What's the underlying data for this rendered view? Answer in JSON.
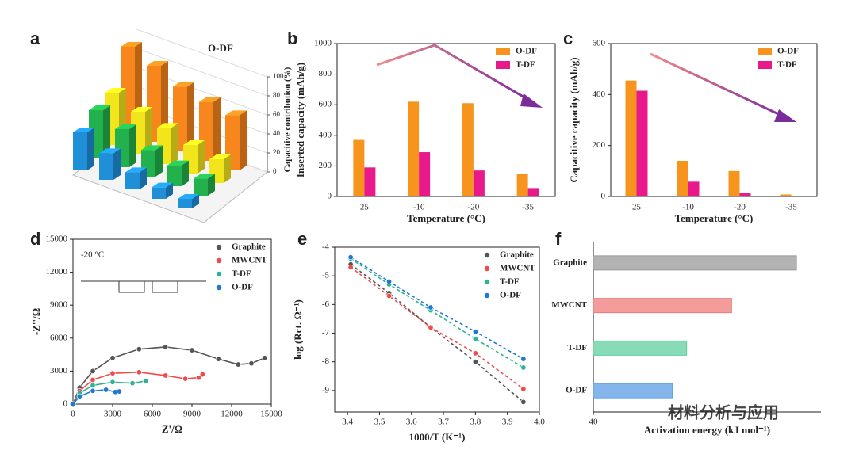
{
  "chart_data": [
    {
      "type": "bar3d",
      "label": "a",
      "title": "O-DF",
      "zlabel": "Capacitive contribution (%)",
      "zlim": [
        0,
        100
      ],
      "zticks": [
        0,
        20,
        40,
        60,
        80,
        100
      ],
      "series": [
        {
          "color": "#1f8fd8",
          "values": [
            40,
            28,
            18,
            12,
            10
          ]
        },
        {
          "color": "#22b14c",
          "values": [
            50,
            40,
            28,
            22,
            18
          ]
        },
        {
          "color": "#f2e51c",
          "values": [
            55,
            45,
            38,
            30,
            25
          ]
        },
        {
          "color": "#f7861c",
          "values": [
            90,
            80,
            68,
            62,
            58
          ]
        }
      ]
    },
    {
      "type": "bar",
      "label": "b",
      "ylabel": "Inserted capacity (mAh/g)",
      "xlabel": "Temperature (°C)",
      "categories": [
        "25",
        "-10",
        "-20",
        "-35"
      ],
      "series": [
        {
          "name": "O-DF",
          "color": "#f7941d",
          "values": [
            370,
            620,
            610,
            150
          ]
        },
        {
          "name": "T-DF",
          "color": "#e8198b",
          "values": [
            190,
            290,
            170,
            55
          ]
        }
      ],
      "ylim": [
        0,
        1000
      ],
      "yticks": [
        0,
        200,
        400,
        600,
        800,
        1000
      ],
      "legend": "upper right"
    },
    {
      "type": "bar",
      "label": "c",
      "ylabel": "Capacitive capacity (mAh/g)",
      "xlabel": "Temperature (°C)",
      "categories": [
        "25",
        "-10",
        "-20",
        "-35"
      ],
      "series": [
        {
          "name": "O-DF",
          "color": "#f7941d",
          "values": [
            455,
            140,
            100,
            8
          ]
        },
        {
          "name": "T-DF",
          "color": "#e8198b",
          "values": [
            415,
            58,
            15,
            3
          ]
        }
      ],
      "ylim": [
        0,
        600
      ],
      "yticks": [
        0,
        200,
        400,
        600
      ],
      "legend": "upper right"
    },
    {
      "type": "scatter",
      "label": "d",
      "annotation": "-20 °C",
      "xlabel": "Z'/Ω",
      "ylabel": "-Z''/Ω",
      "xlim": [
        0,
        15000
      ],
      "xticks": [
        0,
        3000,
        6000,
        9000,
        12000,
        15000
      ],
      "ylim": [
        0,
        15000
      ],
      "yticks": [
        0,
        3000,
        6000,
        9000,
        12000,
        15000
      ],
      "line_style": "solid",
      "legend": "upper right",
      "series": [
        {
          "name": "Graphite",
          "color": "#555555",
          "x": [
            0,
            500,
            1500,
            3000,
            5000,
            7000,
            9000,
            11000,
            12500,
            13500,
            14500
          ],
          "values": [
            0,
            1500,
            3000,
            4200,
            5000,
            5200,
            4900,
            4100,
            3600,
            3700,
            4200
          ]
        },
        {
          "name": "MWCNT",
          "color": "#ee4b4b",
          "x": [
            0,
            500,
            1500,
            3000,
            5000,
            7000,
            8500,
            9500,
            9800
          ],
          "values": [
            0,
            1200,
            2200,
            2800,
            2900,
            2600,
            2300,
            2400,
            2700
          ]
        },
        {
          "name": "T-DF",
          "color": "#2bb594",
          "x": [
            0,
            500,
            1500,
            3000,
            4500,
            5500
          ],
          "values": [
            0,
            1000,
            1700,
            2000,
            1900,
            2100
          ]
        },
        {
          "name": "O-DF",
          "color": "#1f78d1",
          "x": [
            0,
            500,
            1500,
            2500,
            3200,
            3500
          ],
          "values": [
            0,
            700,
            1200,
            1300,
            1100,
            1150
          ]
        }
      ]
    },
    {
      "type": "scatter",
      "label": "e",
      "xlabel": "1000/T (K⁻¹)",
      "ylabel": "log (Rct. Ω⁻¹)",
      "xlim": [
        3.36,
        4.0
      ],
      "xticks": [
        3.4,
        3.5,
        3.6,
        3.7,
        3.8,
        3.9,
        {
          "value": 4,
          "label": "4.0"
        }
      ],
      "ylim": [
        -9.75,
        -4
      ],
      "yticks": [
        -4,
        -5,
        -6,
        -7,
        -8,
        -9
      ],
      "line_style": "dashed",
      "legend": "upper right",
      "series": [
        {
          "name": "Graphite",
          "color": "#555555",
          "x": [
            3.41,
            3.53,
            3.66,
            3.8,
            3.95
          ],
          "values": [
            -4.6,
            -5.6,
            -6.8,
            -8.0,
            -9.4
          ]
        },
        {
          "name": "MWCNT",
          "color": "#ee4b4b",
          "x": [
            3.41,
            3.53,
            3.66,
            3.8,
            3.95
          ],
          "values": [
            -4.7,
            -5.7,
            -6.8,
            -7.7,
            -8.95
          ]
        },
        {
          "name": "T-DF",
          "color": "#2bb594",
          "x": [
            3.41,
            3.53,
            3.66,
            3.8,
            3.95
          ],
          "values": [
            -4.4,
            -5.3,
            -6.2,
            -7.2,
            -8.2
          ]
        },
        {
          "name": "O-DF",
          "color": "#1f78d1",
          "x": [
            3.41,
            3.53,
            3.66,
            3.8,
            3.95
          ],
          "values": [
            -4.35,
            -5.2,
            -6.1,
            -6.95,
            -7.9
          ]
        }
      ]
    },
    {
      "type": "hbar",
      "label": "f",
      "xlabel": "Activation energy (kJ mol⁻¹)",
      "categories": [
        "Graphite",
        "MWCNT",
        "T-DF",
        "O-DF"
      ],
      "values": [
        75.7,
        64.3,
        56.4,
        53.9
      ],
      "colors": [
        "#9a9a9a",
        "#f07a7a",
        "#5fcf9f",
        "#5b9ee6"
      ],
      "xlim": [
        40,
        80
      ],
      "xticks": [
        40
      ]
    }
  ],
  "watermark": "材料分析与应用"
}
